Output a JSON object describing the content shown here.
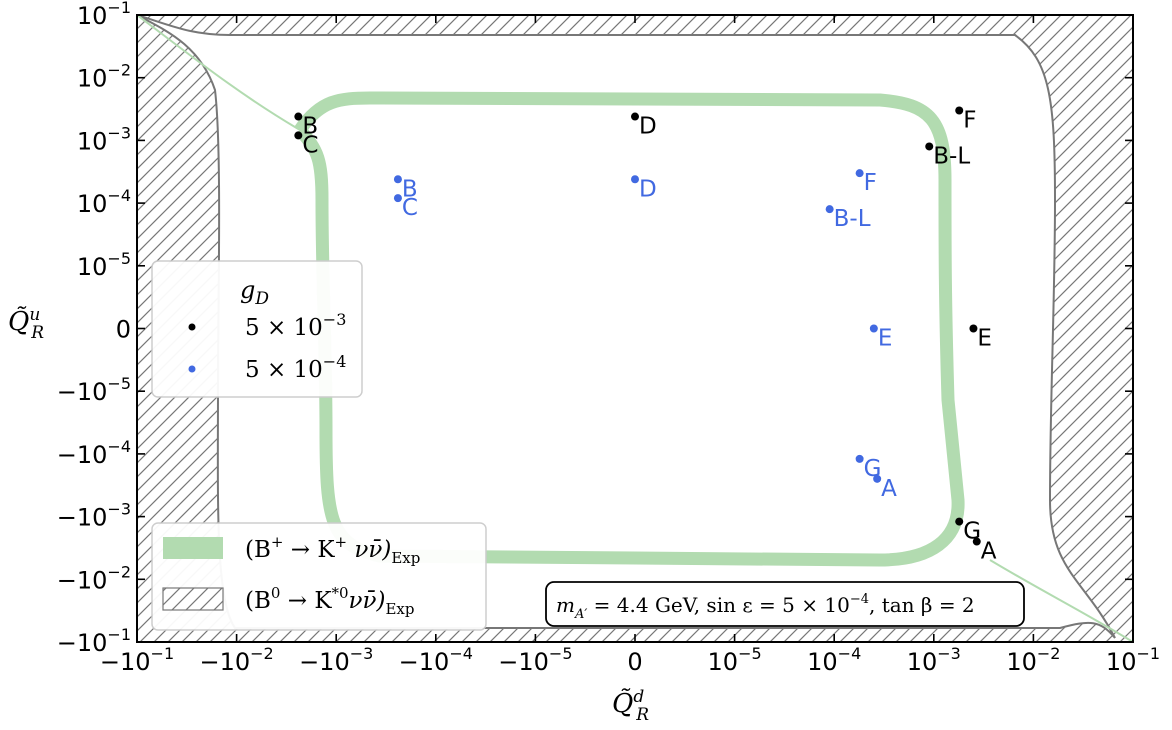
{
  "chart_data": {
    "type": "scatter",
    "title": "",
    "xlabel": "Q̃",
    "xlabel_sup": "d",
    "xlabel_sub": "R",
    "ylabel": "Q̃",
    "ylabel_sup": "u",
    "ylabel_sub": "R",
    "scale": "symlog",
    "xlim": [
      -0.1,
      0.1
    ],
    "ylim": [
      -0.1,
      0.1
    ],
    "x_ticks": [
      {
        "v": -0.1,
        "base": "−10",
        "exp": "−1"
      },
      {
        "v": -0.01,
        "base": "−10",
        "exp": "−2"
      },
      {
        "v": -0.001,
        "base": "−10",
        "exp": "−3"
      },
      {
        "v": -0.0001,
        "base": "−10",
        "exp": "−4"
      },
      {
        "v": -1e-05,
        "base": "−10",
        "exp": "−5"
      },
      {
        "v": 0,
        "base": "0",
        "exp": ""
      },
      {
        "v": 1e-05,
        "base": "10",
        "exp": "−5"
      },
      {
        "v": 0.0001,
        "base": "10",
        "exp": "−4"
      },
      {
        "v": 0.001,
        "base": "10",
        "exp": "−3"
      },
      {
        "v": 0.01,
        "base": "10",
        "exp": "−2"
      },
      {
        "v": 0.1,
        "base": "10",
        "exp": "−1"
      }
    ],
    "y_ticks": [
      {
        "v": 0.1,
        "base": "10",
        "exp": "−1"
      },
      {
        "v": 0.01,
        "base": "10",
        "exp": "−2"
      },
      {
        "v": 0.001,
        "base": "10",
        "exp": "−3"
      },
      {
        "v": 0.0001,
        "base": "10",
        "exp": "−4"
      },
      {
        "v": 1e-05,
        "base": "10",
        "exp": "−5"
      },
      {
        "v": 0,
        "base": "0",
        "exp": ""
      },
      {
        "v": -1e-05,
        "base": "−10",
        "exp": "−5"
      },
      {
        "v": -0.0001,
        "base": "−10",
        "exp": "−4"
      },
      {
        "v": -0.001,
        "base": "−10",
        "exp": "−3"
      },
      {
        "v": -0.01,
        "base": "−10",
        "exp": "−2"
      },
      {
        "v": -0.1,
        "base": "−10",
        "exp": "−1"
      }
    ],
    "series": [
      {
        "name": "5 × 10⁻³",
        "legend_base": "5 × 10",
        "legend_exp": "−3",
        "color": "#000000",
        "points": [
          {
            "label": "B",
            "x": -0.0024,
            "y": 0.0024
          },
          {
            "label": "C",
            "x": -0.0024,
            "y": 0.0012
          },
          {
            "label": "D",
            "x": 0,
            "y": 0.0024
          },
          {
            "label": "F",
            "x": 0.0018,
            "y": 0.003
          },
          {
            "label": "B-L",
            "x": 0.0009,
            "y": 0.0008
          },
          {
            "label": "E",
            "x": 0.0025,
            "y": 0
          },
          {
            "label": "G",
            "x": 0.0018,
            "y": -0.0012
          },
          {
            "label": "A",
            "x": 0.0027,
            "y": -0.0025
          }
        ]
      },
      {
        "name": "5 × 10⁻⁴",
        "legend_base": "5 × 10",
        "legend_exp": "−4",
        "color": "#4169e1",
        "points": [
          {
            "label": "B",
            "x": -0.00024,
            "y": 0.00024
          },
          {
            "label": "C",
            "x": -0.00024,
            "y": 0.00012
          },
          {
            "label": "D",
            "x": 0,
            "y": 0.00024
          },
          {
            "label": "F",
            "x": 0.00018,
            "y": 0.0003
          },
          {
            "label": "B-L",
            "x": 9e-05,
            "y": 8e-05
          },
          {
            "label": "E",
            "x": 0.00025,
            "y": 0
          },
          {
            "label": "G",
            "x": 0.00018,
            "y": -0.00012
          },
          {
            "label": "A",
            "x": 0.00027,
            "y": -0.00025
          }
        ]
      }
    ],
    "regions": [
      {
        "name": "(B⁺ → K⁺νν̄)Exp",
        "style": "green band",
        "color": "#b2dbb0"
      },
      {
        "name": "(B⁰ → K*⁰νν̄)Exp",
        "style": "hatched excluded",
        "color": "#777777"
      }
    ],
    "legend_marker_title": "g",
    "legend_marker_title_sub": "D",
    "legend_placement": "left",
    "region_legend_placement": "bottom-left",
    "annotation": "m_A′ = 4.4 GeV, sin ε = 5 × 10⁻⁴, tan β = 2",
    "grid": false
  },
  "text": {
    "leg_bplus": "(B",
    "leg_bplus_sup": "+",
    "leg_bplus_arrow": " → K",
    "leg_bplus_sup2": "+",
    "leg_bplus_rest": " νν̄)",
    "leg_bplus_sub": "Exp",
    "leg_b0": "(B",
    "leg_b0_sup": "0",
    "leg_b0_arrow": " → K",
    "leg_b0_sup2": "*0",
    "leg_b0_rest": "νν̄)",
    "leg_b0_sub": "Exp",
    "ann_m": "m",
    "ann_m_sub": "A′",
    "ann_m_val": " = 4.4 GeV, sin ε = 5 × 10",
    "ann_exp": "−4",
    "ann_tail": ", tan β = 2"
  }
}
